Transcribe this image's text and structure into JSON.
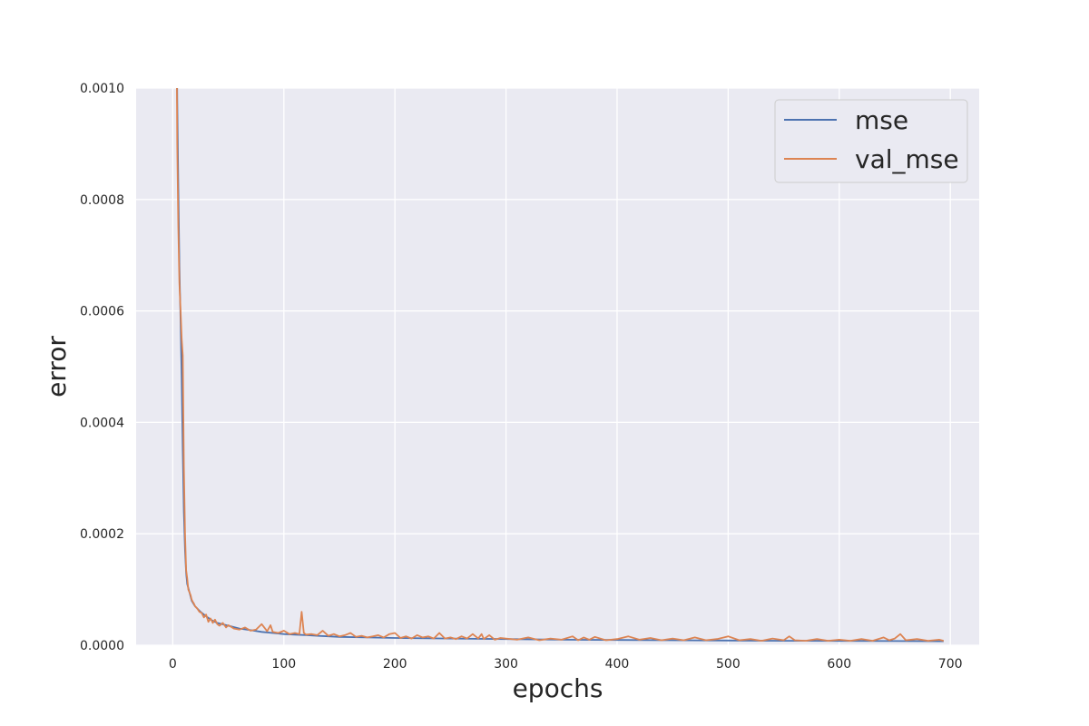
{
  "chart_data": {
    "type": "line",
    "title": "",
    "xlabel": "epochs",
    "ylabel": "error",
    "xlim": [
      -33,
      726
    ],
    "ylim": [
      0,
      0.001
    ],
    "xticks": [
      0,
      100,
      200,
      300,
      400,
      500,
      600,
      700
    ],
    "xtick_labels": [
      "0",
      "100",
      "200",
      "300",
      "400",
      "500",
      "600",
      "700"
    ],
    "yticks": [
      0,
      0.0002,
      0.0004,
      0.0006,
      0.0008,
      0.001
    ],
    "ytick_labels": [
      "0.0000",
      "0.0002",
      "0.0004",
      "0.0006",
      "0.0008",
      "0.0010"
    ],
    "grid": true,
    "legend_position": "top-right",
    "series": [
      {
        "name": "mse",
        "color": "#4c72b0",
        "x": [
          3,
          4,
          5,
          6,
          7,
          8,
          9,
          10,
          11,
          12,
          13,
          15,
          17,
          20,
          25,
          30,
          35,
          40,
          50,
          60,
          70,
          80,
          90,
          100,
          110,
          120,
          130,
          140,
          150,
          175,
          200,
          250,
          300,
          350,
          400,
          450,
          500,
          550,
          600,
          650,
          694
        ],
        "y": [
          0.00125,
          0.00098,
          0.00082,
          0.00068,
          0.00058,
          0.00048,
          0.00035,
          0.00024,
          0.00017,
          0.00013,
          0.00011,
          9.5e-05,
          8e-05,
          7e-05,
          6e-05,
          5.2e-05,
          4.5e-05,
          4e-05,
          3.5e-05,
          3e-05,
          2.7e-05,
          2.4e-05,
          2.2e-05,
          2e-05,
          1.9e-05,
          1.8e-05,
          1.7e-05,
          1.6e-05,
          1.5e-05,
          1.4e-05,
          1.3e-05,
          1.2e-05,
          1.1e-05,
          1e-05,
          9.5e-06,
          9e-06,
          8.5e-06,
          8e-06,
          7.8e-06,
          7.5e-06,
          7.2e-06
        ]
      },
      {
        "name": "val_mse",
        "color": "#dd8452",
        "x": [
          3,
          4,
          5,
          6,
          7,
          8,
          9,
          10,
          11,
          12,
          13,
          14,
          15,
          16,
          17,
          18,
          19,
          20,
          22,
          24,
          26,
          28,
          30,
          32,
          34,
          36,
          38,
          40,
          42,
          45,
          48,
          50,
          55,
          60,
          65,
          70,
          75,
          80,
          85,
          88,
          90,
          95,
          100,
          105,
          110,
          114,
          116,
          118,
          120,
          125,
          130,
          135,
          140,
          145,
          150,
          155,
          160,
          165,
          170,
          175,
          180,
          185,
          190,
          195,
          200,
          205,
          210,
          215,
          220,
          225,
          230,
          235,
          240,
          245,
          250,
          255,
          260,
          265,
          270,
          275,
          278,
          280,
          285,
          290,
          295,
          300,
          310,
          320,
          330,
          340,
          350,
          360,
          365,
          370,
          375,
          380,
          390,
          400,
          410,
          420,
          430,
          440,
          450,
          460,
          470,
          480,
          490,
          500,
          510,
          520,
          530,
          540,
          550,
          555,
          560,
          570,
          580,
          590,
          600,
          610,
          620,
          630,
          640,
          645,
          650,
          655,
          660,
          670,
          680,
          690,
          694
        ],
        "y": [
          0.00125,
          0.0009,
          0.00075,
          0.00065,
          0.0006,
          0.00055,
          0.00052,
          0.00032,
          0.0002,
          0.000135,
          0.00012,
          0.0001,
          9.5e-05,
          9e-05,
          8.2e-05,
          7.8e-05,
          7.5e-05,
          7e-05,
          6.6e-05,
          6e-05,
          5.8e-05,
          5e-05,
          5.5e-05,
          4.2e-05,
          4.8e-05,
          4e-05,
          4.6e-05,
          3.8e-05,
          3.5e-05,
          4e-05,
          3.2e-05,
          3.6e-05,
          3e-05,
          2.8e-05,
          3.2e-05,
          2.6e-05,
          2.8e-05,
          3.8e-05,
          2.5e-05,
          3.6e-05,
          2.4e-05,
          2.2e-05,
          2.6e-05,
          2e-05,
          2.2e-05,
          2e-05,
          6e-05,
          2.2e-05,
          1.9e-05,
          2e-05,
          1.8e-05,
          2.6e-05,
          1.7e-05,
          2e-05,
          1.6e-05,
          1.8e-05,
          2.2e-05,
          1.5e-05,
          1.7e-05,
          1.4e-05,
          1.6e-05,
          1.8e-05,
          1.4e-05,
          2e-05,
          2.2e-05,
          1.3e-05,
          1.6e-05,
          1.2e-05,
          1.8e-05,
          1.4e-05,
          1.6e-05,
          1.2e-05,
          2.2e-05,
          1.2e-05,
          1.4e-05,
          1.1e-05,
          1.6e-05,
          1.2e-05,
          2e-05,
          1.2e-05,
          2e-05,
          1.1e-05,
          1.8e-05,
          1e-05,
          1.3e-05,
          1.2e-05,
          1e-05,
          1.4e-05,
          9e-06,
          1.2e-05,
          1e-05,
          1.6e-05,
          9e-06,
          1.4e-05,
          1e-05,
          1.5e-05,
          9e-06,
          1.1e-05,
          1.6e-05,
          1e-05,
          1.3e-05,
          9e-06,
          1.2e-05,
          9e-06,
          1.4e-05,
          9e-06,
          1.1e-05,
          1.6e-05,
          9e-06,
          1.1e-05,
          8e-06,
          1.2e-05,
          9e-06,
          1.6e-05,
          9e-06,
          8e-06,
          1.1e-05,
          8e-06,
          1e-05,
          8e-06,
          1.1e-05,
          8e-06,
          1.4e-05,
          9e-06,
          1.2e-05,
          2e-05,
          9e-06,
          1.1e-05,
          8e-06,
          1e-05,
          8e-06
        ]
      }
    ]
  }
}
